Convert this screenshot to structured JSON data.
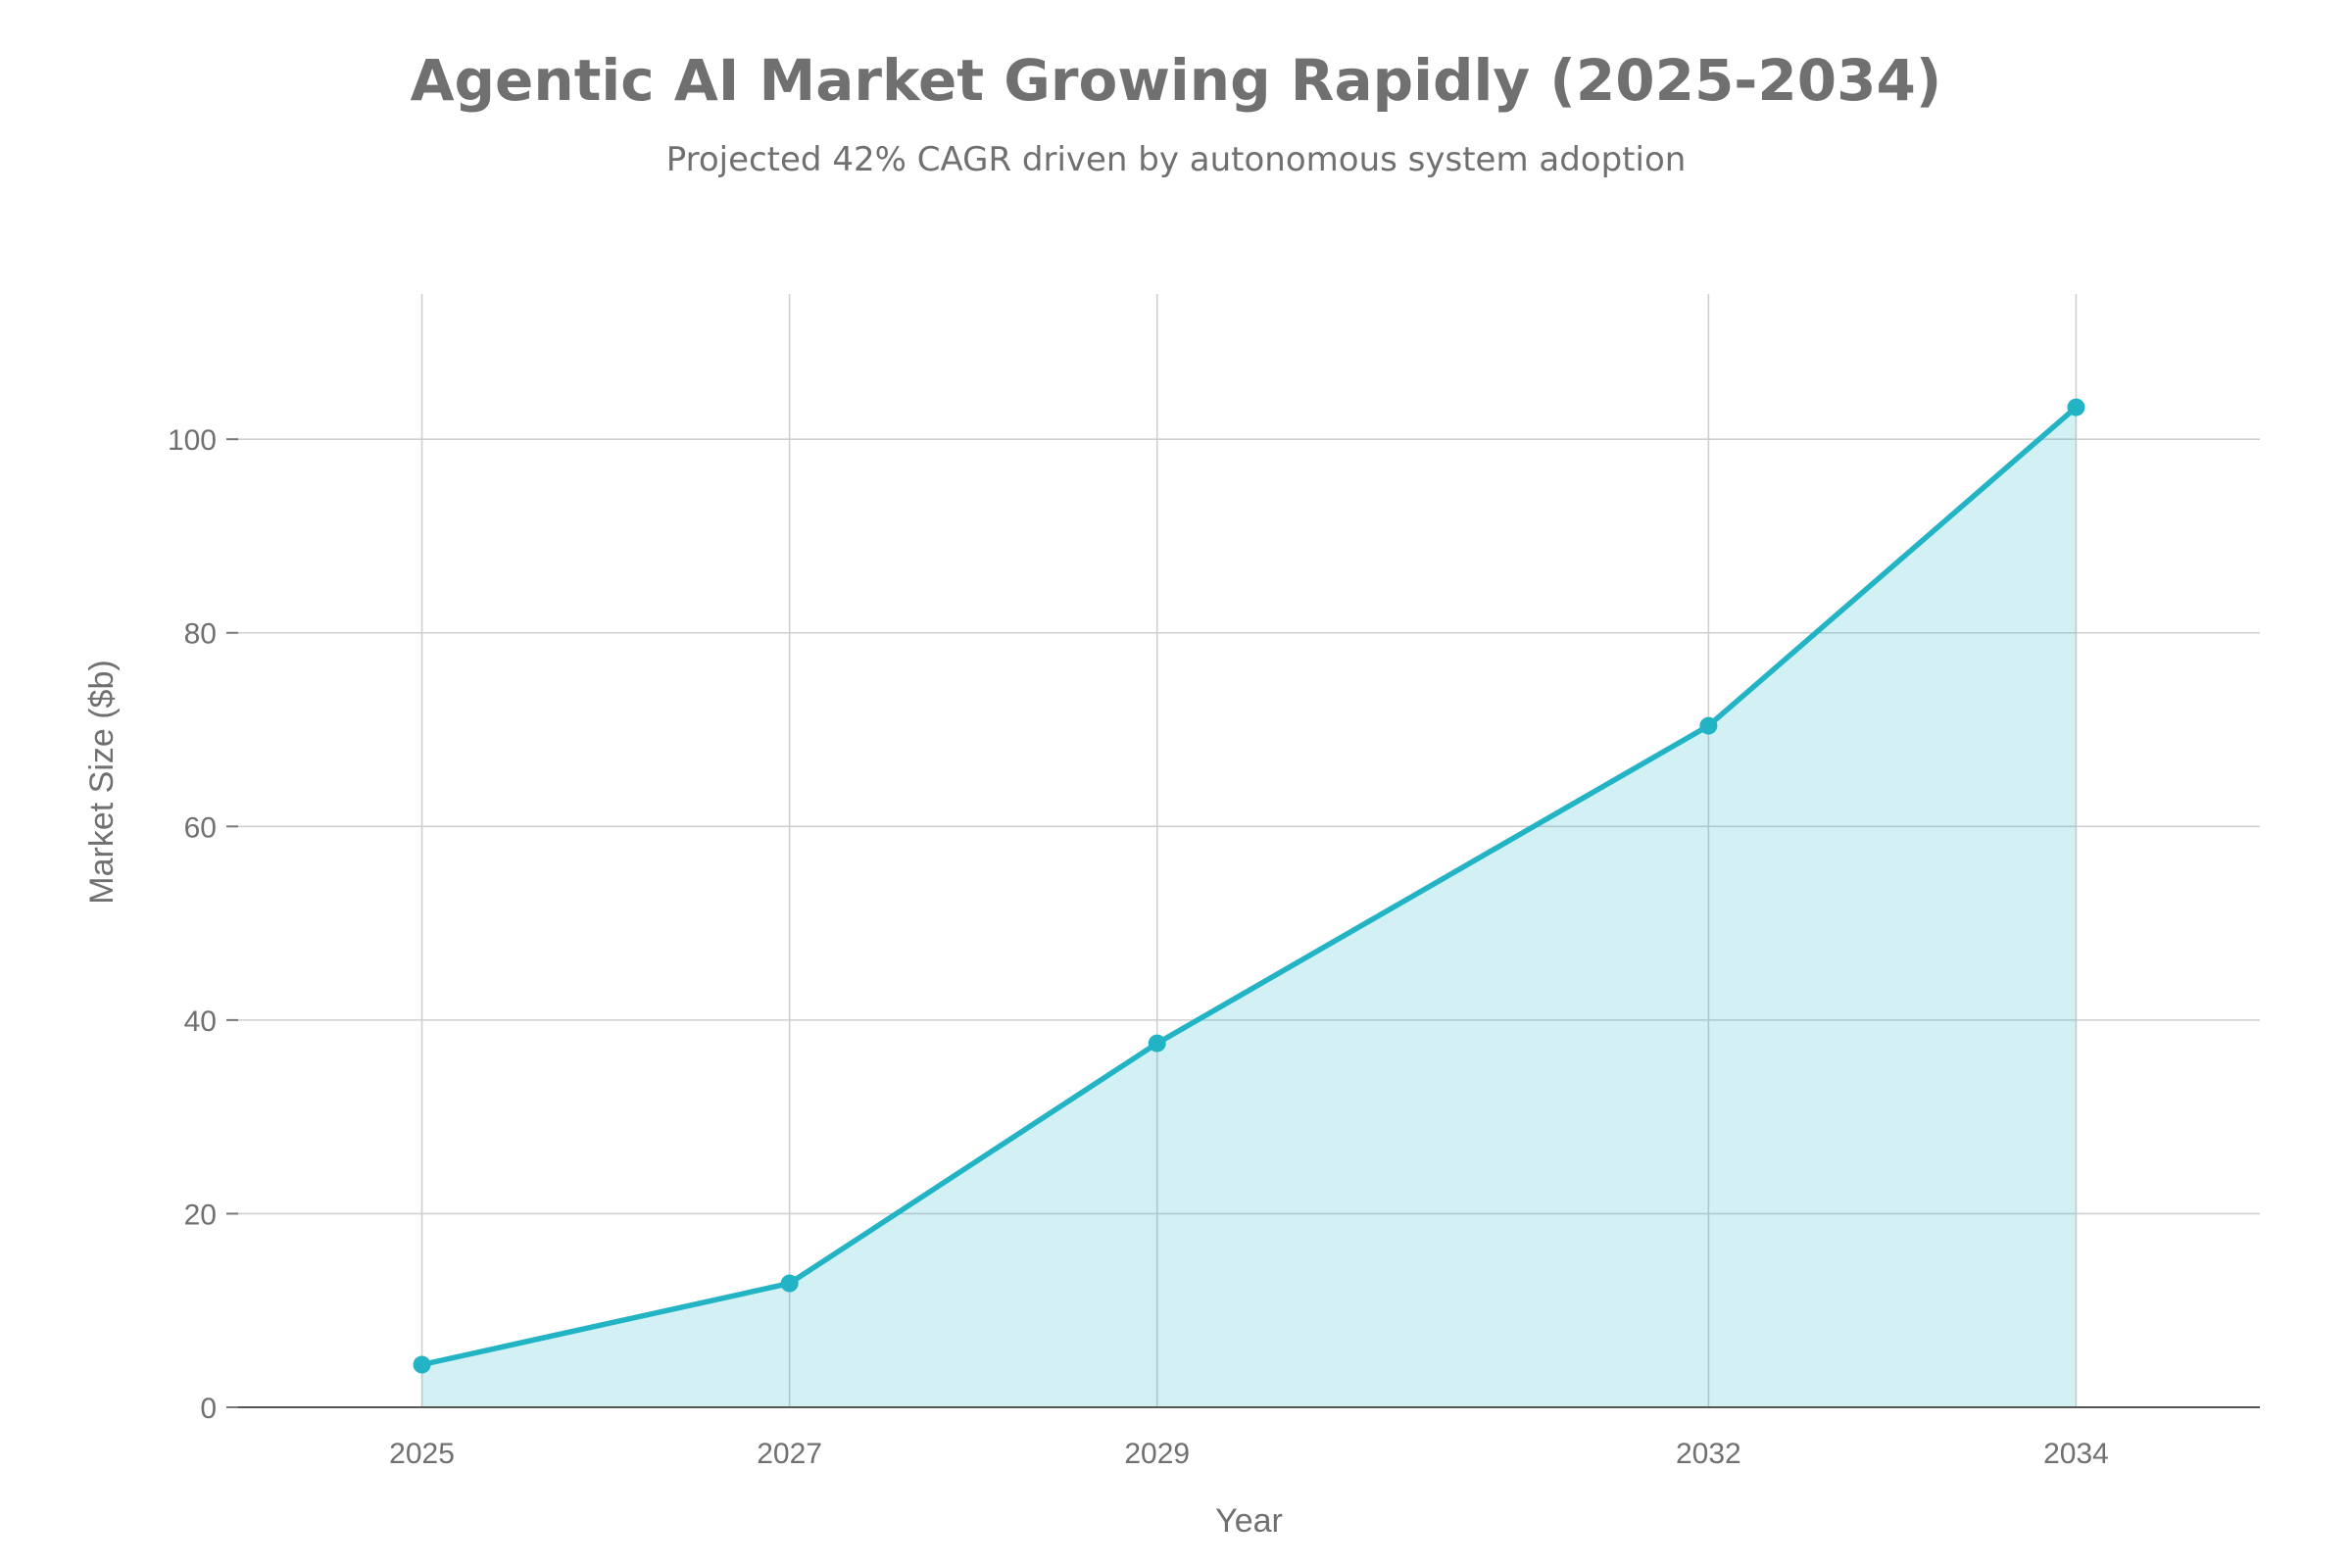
{
  "chart_data": {
    "type": "area",
    "title": "Agentic AI Market Growing Rapidly (2025-2034)",
    "subtitle": "Projected 42% CAGR driven by autonomous system adoption",
    "xlabel": "Year",
    "ylabel": "Market Size ($b)",
    "x": [
      2025,
      2027,
      2029,
      2032,
      2034
    ],
    "x_tick_labels": [
      "2025",
      "2027",
      "2029",
      "2032",
      "2034"
    ],
    "xlim": [
      2024.0,
      2035.0
    ],
    "y": [
      4.4,
      12.8,
      37.6,
      70.4,
      103.3
    ],
    "ylim": [
      0,
      115
    ],
    "y_ticks": [
      0,
      20,
      40,
      60,
      80,
      100
    ],
    "y_tick_labels": [
      "0",
      "20",
      "40",
      "60",
      "80",
      "100"
    ],
    "grid": true,
    "legend": "none",
    "colors": {
      "series": "#22b4c5",
      "grid": "#cfcfcf",
      "text": "#707070"
    }
  }
}
